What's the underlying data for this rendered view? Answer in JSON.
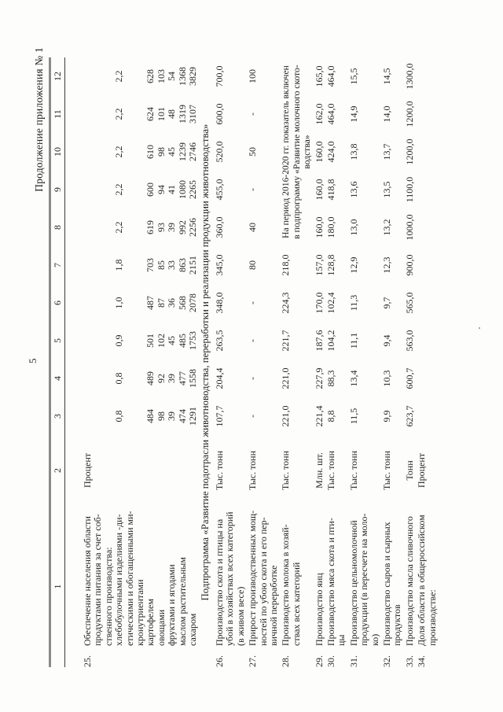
{
  "page": {
    "continuation_label": "Продолжение приложения № 1",
    "page_number": "5"
  },
  "table": {
    "column_numbers": [
      "1",
      "2",
      "3",
      "4",
      "5",
      "6",
      "7",
      "8",
      "9",
      "10",
      "11",
      "12"
    ],
    "rows": [
      {
        "num": "25.",
        "unit": "Процент",
        "label_lines": [
          "Обеспечение населения области",
          "продуктами питания за счет соб-",
          "ственного производства:",
          "хлебобулочными изделиями -ди-",
          "етическими и обогащенными ми-",
          "кронутриентами",
          "картофелем",
          "овощами",
          "фруктами и ягодами",
          "маслом растительным",
          "сахаром"
        ],
        "values": [
          [
            "",
            "",
            "",
            "0,8",
            "",
            "",
            "484",
            "98",
            "39",
            "474",
            "1291"
          ],
          [
            "",
            "",
            "",
            "0,8",
            "",
            "",
            "489",
            "92",
            "39",
            "477",
            "1558"
          ],
          [
            "",
            "",
            "",
            "0,9",
            "",
            "",
            "501",
            "102",
            "45",
            "485",
            "1753"
          ],
          [
            "",
            "",
            "",
            "1,0",
            "",
            "",
            "487",
            "87",
            "36",
            "568",
            "2078"
          ],
          [
            "",
            "",
            "",
            "1,8",
            "",
            "",
            "703",
            "85",
            "33",
            "863",
            "2151"
          ],
          [
            "",
            "",
            "",
            "2,2",
            "",
            "",
            "619",
            "93",
            "39",
            "992",
            "2256"
          ],
          [
            "",
            "",
            "",
            "2,2",
            "",
            "",
            "600",
            "94",
            "41",
            "1080",
            "2265"
          ],
          [
            "",
            "",
            "",
            "2,2",
            "",
            "",
            "610",
            "98",
            "45",
            "1239",
            "2746"
          ],
          [
            "",
            "",
            "",
            "2,2",
            "",
            "",
            "624",
            "101",
            "48",
            "1319",
            "3107"
          ],
          [
            "",
            "",
            "",
            "2,2",
            "",
            "",
            "628",
            "103",
            "54",
            "1368",
            "3829"
          ]
        ]
      },
      {
        "type": "subprogram",
        "text": "Подпрограмма «Развитие подотрасли животноводства, переработки и реализации продукции животноводства»"
      },
      {
        "num": "26.",
        "unit": "Тыс. тонн",
        "label_lines": [
          "Производство скота и птицы на",
          "убой в хозяйствах всех категорий",
          "(в живом весе)"
        ],
        "values": [
          [
            "107,7"
          ],
          [
            "204,4"
          ],
          [
            "263,5"
          ],
          [
            "348,0"
          ],
          [
            "345,0"
          ],
          [
            "360,0"
          ],
          [
            "455,0"
          ],
          [
            "520,0"
          ],
          [
            "600,0"
          ],
          [
            "700,0"
          ]
        ]
      },
      {
        "num": "27.",
        "unit": "Тыс. тонн",
        "label_lines": [
          "Прирост производственных мощ-",
          "ностей по убою скота и его пер-",
          "вичной переработке"
        ],
        "values": [
          [
            "-"
          ],
          [
            "-"
          ],
          [
            "-"
          ],
          [
            "-"
          ],
          [
            "80"
          ],
          [
            "40"
          ],
          [
            "-"
          ],
          [
            "50"
          ],
          [
            "-"
          ],
          [
            "100"
          ]
        ]
      },
      {
        "num": "28.",
        "unit": "Тыс. тонн",
        "label_lines": [
          "Производство молока в хозяй-",
          "ствах всех категорий"
        ],
        "values": [
          [
            "221,0"
          ],
          [
            "221,0"
          ],
          [
            "221,7"
          ],
          [
            "224,3"
          ],
          [
            "218,0"
          ]
        ],
        "note": [
          "На период 2016-2020 гг. показатель включен",
          "в подпрограмму «Развитие молочного ското-",
          "водства»"
        ]
      },
      {
        "num": "29.",
        "unit": "Млн. шт.",
        "label_lines": [
          "Производство яиц"
        ],
        "values": [
          [
            "221,4"
          ],
          [
            "227,9"
          ],
          [
            "187,6"
          ],
          [
            "170,0"
          ],
          [
            "157,0"
          ],
          [
            "160,0"
          ],
          [
            "160,0"
          ],
          [
            "160,0"
          ],
          [
            "162,0"
          ],
          [
            "165,0"
          ]
        ]
      },
      {
        "num": "30.",
        "unit": "Тыс. тонн",
        "label_lines": [
          "Производство мяса скота и пти-",
          "цы"
        ],
        "values": [
          [
            "8,8"
          ],
          [
            "88,3"
          ],
          [
            "104,2"
          ],
          [
            "102,4"
          ],
          [
            "128,8"
          ],
          [
            "180,0"
          ],
          [
            "418,8"
          ],
          [
            "424,0"
          ],
          [
            "464,0"
          ],
          [
            "464,0"
          ]
        ]
      },
      {
        "num": "31.",
        "unit": "Тыс. тонн",
        "label_lines": [
          "Производство цельномолочной",
          "продукции (в пересчете на моло-",
          "ко)"
        ],
        "values": [
          [
            "11,5"
          ],
          [
            "13,4"
          ],
          [
            "11,1"
          ],
          [
            "11,3"
          ],
          [
            "12,9"
          ],
          [
            "13,0"
          ],
          [
            "13,6"
          ],
          [
            "13,8"
          ],
          [
            "14,9"
          ],
          [
            "15,5"
          ]
        ]
      },
      {
        "num": "32.",
        "unit": "Тыс. тонн",
        "label_lines": [
          "Производство сыров и сырных",
          "продуктов"
        ],
        "values": [
          [
            "9,9"
          ],
          [
            "10,3"
          ],
          [
            "9,4"
          ],
          [
            "9,7"
          ],
          [
            "12,3"
          ],
          [
            "13,2"
          ],
          [
            "13,5"
          ],
          [
            "13,7"
          ],
          [
            "14,0"
          ],
          [
            "14,5"
          ]
        ]
      },
      {
        "num": "33.",
        "unit": "Тонн",
        "label_lines": [
          "Производство масла сливочного"
        ],
        "values": [
          [
            "623,7"
          ],
          [
            "600,7"
          ],
          [
            "563,0"
          ],
          [
            "565,0"
          ],
          [
            "900,0"
          ],
          [
            "1000,0"
          ],
          [
            "1100,0"
          ],
          [
            "1200,0"
          ],
          [
            "1200,0"
          ],
          [
            "1300,0"
          ]
        ]
      },
      {
        "num": "34.",
        "unit": "Процент",
        "label_lines": [
          "Доля области в общероссийском",
          "производстве:"
        ],
        "values": []
      }
    ]
  }
}
